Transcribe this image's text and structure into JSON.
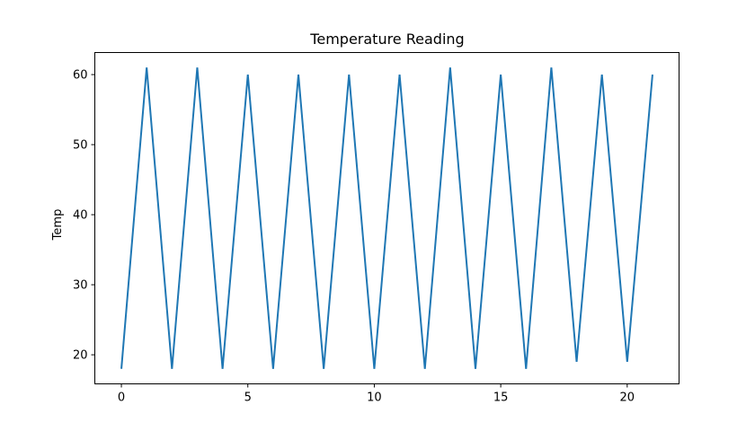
{
  "chart_data": {
    "type": "line",
    "title": "Temperature Reading",
    "xlabel": "",
    "ylabel": "Temp",
    "xlim": [
      -1.05,
      22.05
    ],
    "ylim": [
      15.85,
      63.15
    ],
    "x_ticks": [
      0,
      5,
      10,
      15,
      20
    ],
    "y_ticks": [
      20,
      30,
      40,
      50,
      60
    ],
    "grid": false,
    "legend": "none",
    "series": [
      {
        "color": "#1f77b4",
        "x": [
          0,
          1,
          2,
          3,
          4,
          5,
          6,
          7,
          8,
          9,
          10,
          11,
          12,
          13,
          14,
          15,
          16,
          17,
          18,
          19,
          20,
          21
        ],
        "values": [
          18,
          61,
          18,
          61,
          18,
          60,
          18,
          60,
          18,
          60,
          18,
          60,
          18,
          61,
          18,
          60,
          18,
          61,
          19,
          60,
          19,
          60
        ]
      }
    ]
  }
}
